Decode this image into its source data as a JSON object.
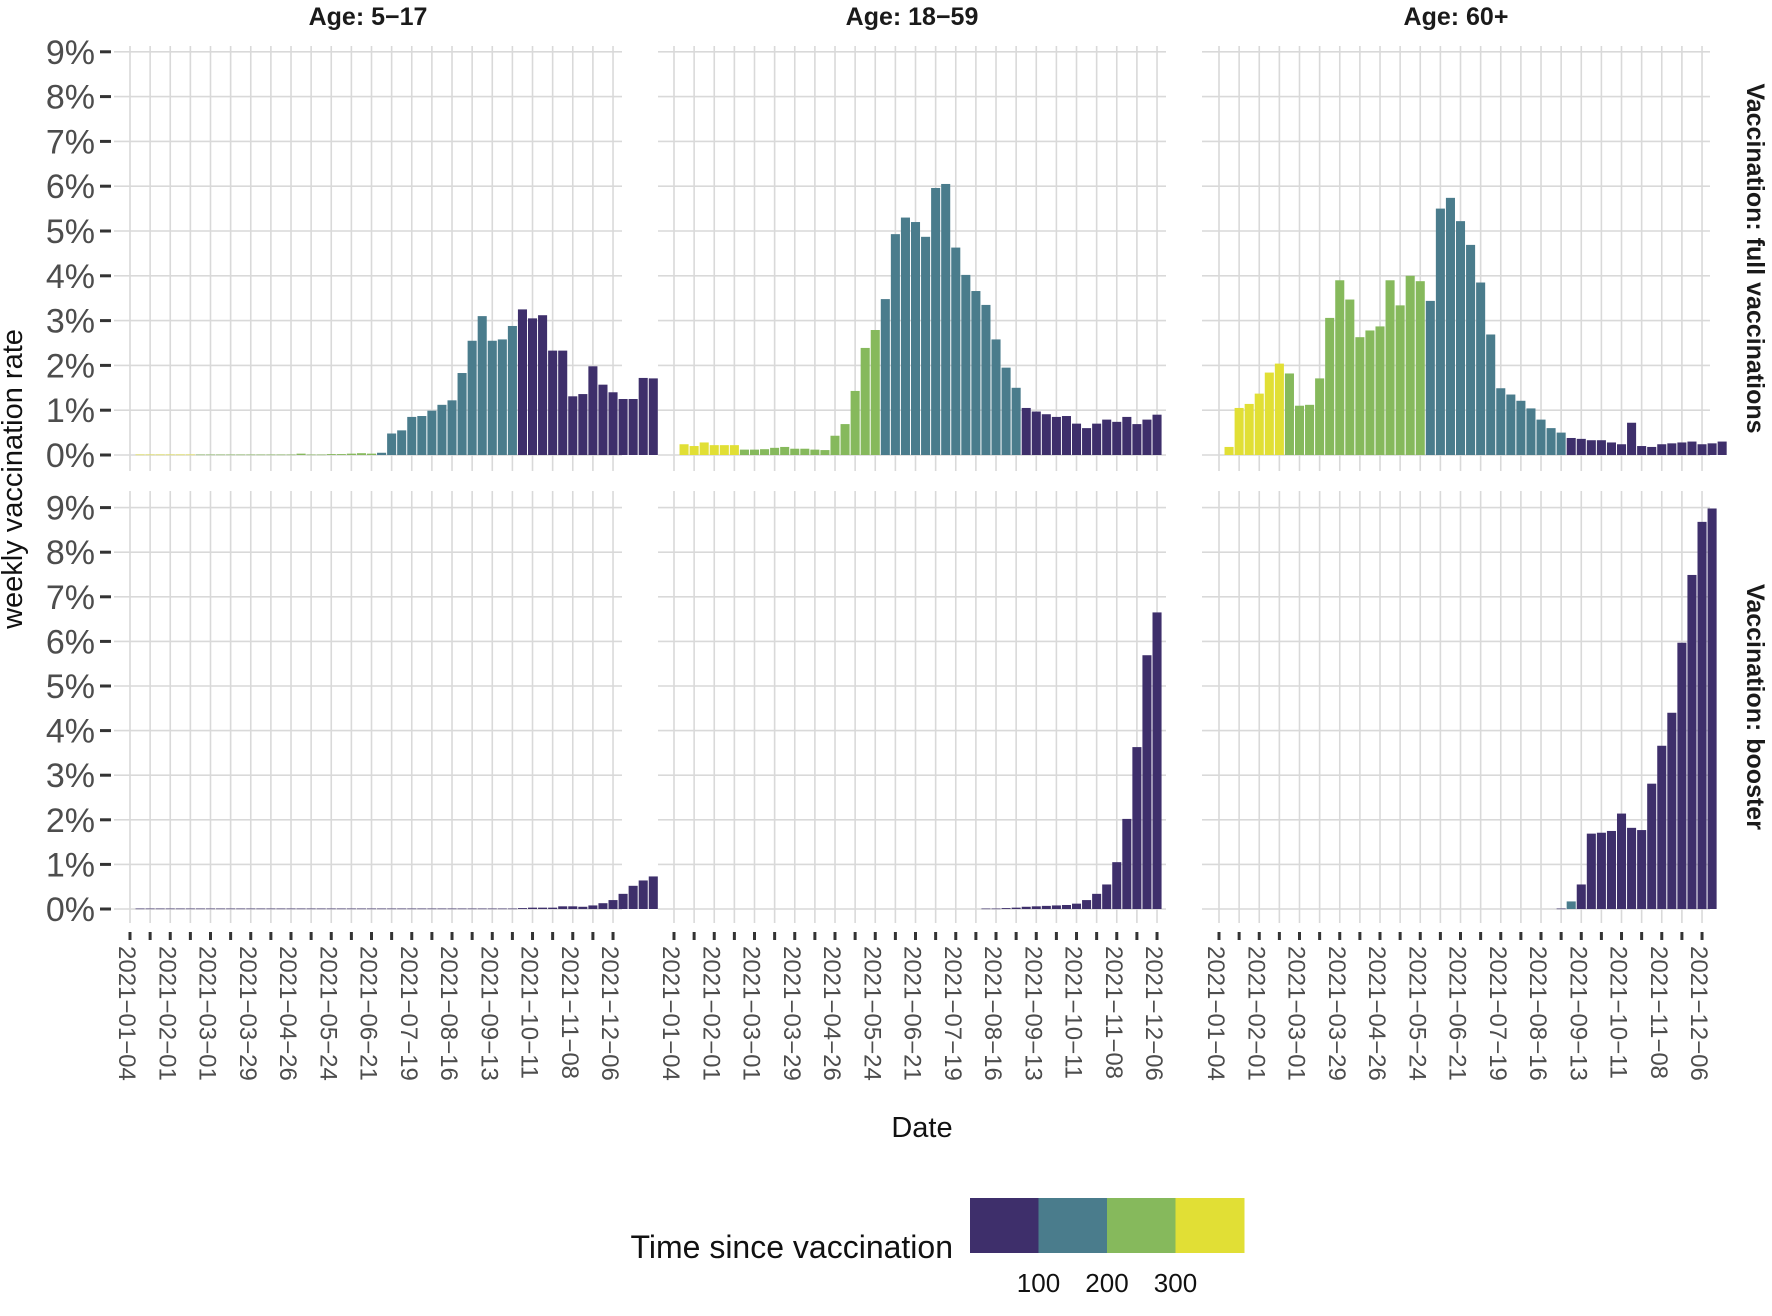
{
  "chart_data": {
    "type": "bar",
    "ylabel": "weekly vaccination rate",
    "xlabel": "Date",
    "y_ticks": [
      "0%",
      "1%",
      "2%",
      "3%",
      "4%",
      "5%",
      "6%",
      "7%",
      "8%",
      "9%"
    ],
    "ylim": [
      0,
      9
    ],
    "x_ticks": [
      "2021−01−04",
      "2021−02−01",
      "2021−03−01",
      "2021−03−29",
      "2021−04−26",
      "2021−05−24",
      "2021−06−21",
      "2021−07−19",
      "2021−08−16",
      "2021−09−13",
      "2021−10−11",
      "2021−11−08",
      "2021−12−06"
    ],
    "weeks_per_tick": 4,
    "col_labels": [
      "Age: 5−17",
      "Age: 18−59",
      "Age: 60+"
    ],
    "row_labels": [
      "Vaccination: full vaccinations",
      "Vaccination: booster"
    ],
    "legend": {
      "title": "Time since vaccination",
      "labels": [
        "100",
        "200",
        "300"
      ],
      "colors": [
        "#3e2f6b",
        "#4a7c8c",
        "#86b95c",
        "#e1df35"
      ],
      "placement": "bottom"
    },
    "grid": true,
    "panels": [
      {
        "row": 0,
        "col": 0,
        "values": [
          0.01,
          0.01,
          0.01,
          0.01,
          0.01,
          0.01,
          0.01,
          0.01,
          0.01,
          0.01,
          0.01,
          0.01,
          0.01,
          0.01,
          0.01,
          0.01,
          0.03,
          0.01,
          0.01,
          0.02,
          0.02,
          0.03,
          0.04,
          0.03,
          0.05,
          0.48,
          0.55,
          0.85,
          0.87,
          0.99,
          1.12,
          1.22,
          1.83,
          2.55,
          3.1,
          2.55,
          2.58,
          2.88,
          3.25,
          3.05,
          3.12,
          2.33,
          2.33,
          1.31,
          1.36,
          1.98,
          1.57,
          1.4,
          1.25,
          1.25,
          1.72,
          1.71
        ],
        "color_class": [
          3,
          3,
          3,
          3,
          3,
          3,
          2,
          2,
          2,
          2,
          2,
          2,
          2,
          2,
          2,
          2,
          2,
          2,
          2,
          2,
          2,
          2,
          2,
          2,
          1,
          1,
          1,
          1,
          1,
          1,
          1,
          1,
          1,
          1,
          1,
          1,
          1,
          1,
          0,
          0,
          0,
          0,
          0,
          0,
          0,
          0,
          0,
          0,
          0,
          0,
          0,
          0
        ]
      },
      {
        "row": 0,
        "col": 1,
        "values": [
          0.24,
          0.2,
          0.28,
          0.22,
          0.22,
          0.22,
          0.12,
          0.12,
          0.13,
          0.16,
          0.18,
          0.14,
          0.14,
          0.12,
          0.11,
          0.43,
          0.69,
          1.43,
          2.39,
          2.79,
          3.48,
          4.93,
          5.3,
          5.2,
          4.87,
          5.96,
          6.05,
          4.63,
          4.02,
          3.66,
          3.35,
          2.58,
          1.95,
          1.5,
          1.05,
          0.97,
          0.91,
          0.85,
          0.87,
          0.7,
          0.6,
          0.7,
          0.79,
          0.74,
          0.85,
          0.69,
          0.79,
          0.9
        ],
        "color_class": [
          3,
          3,
          3,
          3,
          3,
          3,
          2,
          2,
          2,
          2,
          2,
          2,
          2,
          2,
          2,
          2,
          2,
          2,
          2,
          2,
          1,
          1,
          1,
          1,
          1,
          1,
          1,
          1,
          1,
          1,
          1,
          1,
          1,
          1,
          0,
          0,
          0,
          0,
          0,
          0,
          0,
          0,
          0,
          0,
          0,
          0,
          0,
          0
        ]
      },
      {
        "row": 0,
        "col": 2,
        "values": [
          0.18,
          1.05,
          1.14,
          1.37,
          1.84,
          2.04,
          1.82,
          1.1,
          1.12,
          1.71,
          3.06,
          3.9,
          3.47,
          2.63,
          2.78,
          2.87,
          3.9,
          3.34,
          4.0,
          3.88,
          3.44,
          5.5,
          5.74,
          5.22,
          4.69,
          3.85,
          2.69,
          1.49,
          1.35,
          1.21,
          1.04,
          0.79,
          0.6,
          0.5,
          0.38,
          0.36,
          0.33,
          0.33,
          0.28,
          0.24,
          0.72,
          0.2,
          0.18,
          0.24,
          0.26,
          0.28,
          0.3,
          0.24,
          0.26,
          0.3
        ],
        "color_class": [
          3,
          3,
          3,
          3,
          3,
          3,
          2,
          2,
          2,
          2,
          2,
          2,
          2,
          2,
          2,
          2,
          2,
          2,
          2,
          2,
          1,
          1,
          1,
          1,
          1,
          1,
          1,
          1,
          1,
          1,
          1,
          1,
          1,
          1,
          0,
          0,
          0,
          0,
          0,
          0,
          0,
          0,
          0,
          0,
          0,
          0,
          0,
          0,
          0,
          0
        ]
      },
      {
        "row": 1,
        "col": 0,
        "values": [
          0.01,
          0.01,
          0.01,
          0.01,
          0.01,
          0.01,
          0.01,
          0.01,
          0.01,
          0.01,
          0.01,
          0.01,
          0.01,
          0.01,
          0.01,
          0.01,
          0.01,
          0.01,
          0.01,
          0.01,
          0.01,
          0.01,
          0.01,
          0.01,
          0.01,
          0.01,
          0.01,
          0.01,
          0.01,
          0.01,
          0.01,
          0.01,
          0.01,
          0.01,
          0.01,
          0.01,
          0.01,
          0.01,
          0.02,
          0.03,
          0.03,
          0.03,
          0.06,
          0.06,
          0.05,
          0.08,
          0.13,
          0.2,
          0.34,
          0.52,
          0.64,
          0.73
        ],
        "color_class": [
          0,
          0,
          0,
          0,
          0,
          0,
          0,
          0,
          0,
          0,
          0,
          0,
          0,
          0,
          0,
          0,
          0,
          0,
          0,
          0,
          0,
          0,
          0,
          0,
          0,
          0,
          0,
          0,
          0,
          0,
          0,
          0,
          0,
          0,
          0,
          0,
          0,
          0,
          0,
          0,
          0,
          0,
          0,
          0,
          0,
          0,
          0,
          0,
          0,
          0,
          0,
          0
        ]
      },
      {
        "row": 1,
        "col": 1,
        "values": [
          0,
          0,
          0,
          0,
          0,
          0,
          0,
          0,
          0,
          0,
          0,
          0,
          0,
          0,
          0,
          0,
          0,
          0,
          0,
          0,
          0,
          0,
          0,
          0,
          0,
          0,
          0,
          0,
          0,
          0,
          0.01,
          0.01,
          0.02,
          0.03,
          0.05,
          0.06,
          0.07,
          0.08,
          0.09,
          0.12,
          0.2,
          0.34,
          0.55,
          1.05,
          2.02,
          3.63,
          5.69,
          6.65
        ],
        "color_class": [
          0,
          0,
          0,
          0,
          0,
          0,
          0,
          0,
          0,
          0,
          0,
          0,
          0,
          0,
          0,
          0,
          0,
          0,
          0,
          0,
          0,
          0,
          0,
          0,
          0,
          0,
          0,
          0,
          0,
          0,
          0,
          0,
          0,
          0,
          0,
          0,
          0,
          0,
          0,
          0,
          0,
          0,
          0,
          0,
          0,
          0,
          0,
          0
        ]
      },
      {
        "row": 1,
        "col": 2,
        "values": [
          0,
          0,
          0,
          0,
          0,
          0,
          0,
          0,
          0,
          0,
          0,
          0,
          0,
          0,
          0,
          0,
          0,
          0,
          0,
          0,
          0,
          0,
          0,
          0,
          0,
          0,
          0,
          0,
          0,
          0,
          0,
          0,
          0,
          0.01,
          0.17,
          0.55,
          1.69,
          1.71,
          1.75,
          2.14,
          1.82,
          1.77,
          2.81,
          3.66,
          4.4,
          5.97,
          7.49,
          8.68,
          8.98,
          0
        ],
        "color_class": [
          0,
          0,
          0,
          0,
          0,
          0,
          0,
          0,
          0,
          0,
          0,
          0,
          0,
          0,
          0,
          0,
          0,
          0,
          0,
          0,
          0,
          0,
          0,
          0,
          0,
          0,
          0,
          0,
          0,
          0,
          0,
          0,
          0,
          0,
          1,
          0,
          0,
          0,
          0,
          0,
          0,
          0,
          0,
          0,
          0,
          0,
          0,
          0,
          0,
          0
        ]
      }
    ]
  }
}
